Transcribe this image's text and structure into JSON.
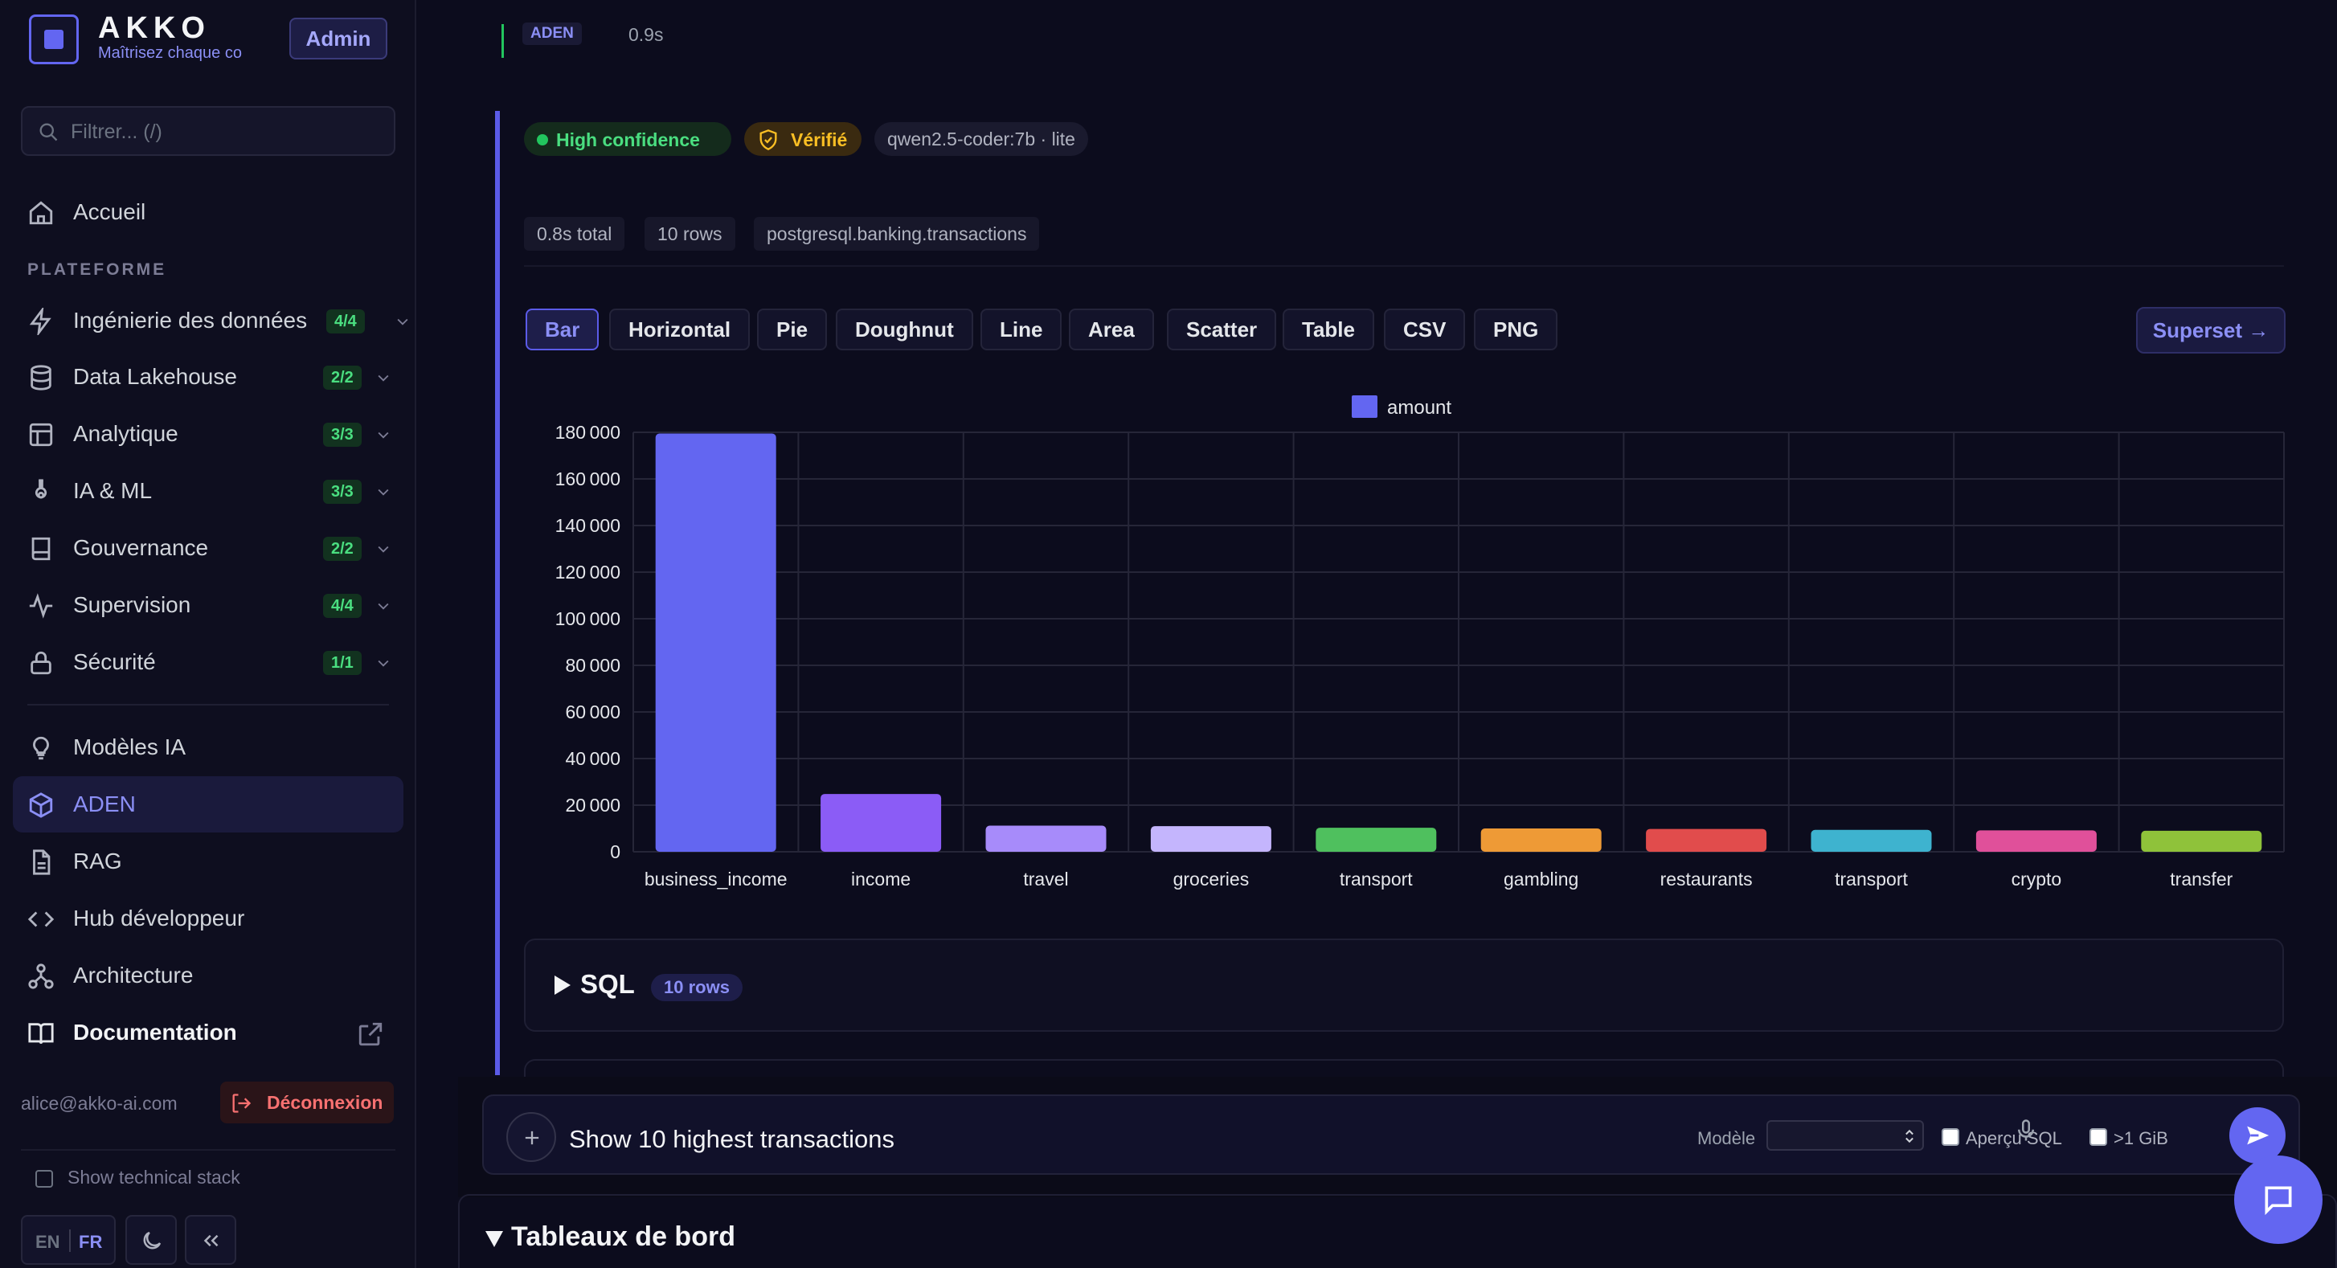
{
  "app": {
    "brand": "AKKO",
    "tagline": "Maîtrisez chaque co",
    "role_badge": "Admin"
  },
  "sidebar": {
    "search_placeholder": "Filtrer... (/)",
    "home": "Accueil",
    "section_title": "PLATEFORME",
    "groups": [
      {
        "label": "Ingénierie des données",
        "count": "4/4",
        "icon": "lightning-icon"
      },
      {
        "label": "Data Lakehouse",
        "count": "2/2",
        "icon": "database-icon"
      },
      {
        "label": "Analytique",
        "count": "3/3",
        "icon": "layout-icon"
      },
      {
        "label": "IA & ML",
        "count": "3/3",
        "icon": "flask-icon"
      },
      {
        "label": "Gouvernance",
        "count": "2/2",
        "icon": "book-icon"
      },
      {
        "label": "Supervision",
        "count": "4/4",
        "icon": "activity-icon"
      },
      {
        "label": "Sécurité",
        "count": "1/1",
        "icon": "lock-icon"
      }
    ],
    "links": [
      {
        "label": "Modèles IA",
        "icon": "bulb-icon"
      },
      {
        "label": "ADEN",
        "icon": "cube-icon",
        "active": true
      },
      {
        "label": "RAG",
        "icon": "file-icon"
      },
      {
        "label": "Hub développeur",
        "icon": "code-icon"
      },
      {
        "label": "Architecture",
        "icon": "network-icon"
      },
      {
        "label": "Documentation",
        "icon": "open-book-icon"
      }
    ],
    "user_email": "alice@akko-ai.com",
    "logout_label": "Déconnexion",
    "tech_stack_label": "Show technical stack",
    "lang_en": "EN",
    "lang_fr": "FR"
  },
  "result": {
    "prev_tag": "ADEN",
    "prev_time": "0.9s",
    "confidence": "High confidence",
    "verified": "Vérifié",
    "model": "qwen2.5-coder:7b · lite",
    "stats": [
      "0.8s total",
      "10 rows",
      "postgresql.banking.transactions"
    ],
    "chart_types": [
      "Bar",
      "Horizontal",
      "Pie",
      "Doughnut",
      "Line",
      "Area",
      "Scatter",
      "Table",
      "CSV",
      "PNG"
    ],
    "active_chart_type": "Bar",
    "superset_label": "Superset →",
    "sql_title": "SQL",
    "sql_rows_badge": "10 rows"
  },
  "chart_data": {
    "type": "bar",
    "categories": [
      "business_income",
      "income",
      "travel",
      "groceries",
      "transport",
      "gambling",
      "restaurants",
      "transport",
      "crypto",
      "transfer"
    ],
    "series": [
      {
        "name": "amount",
        "values": [
          179500,
          24800,
          11200,
          11000,
          10300,
          10000,
          9800,
          9400,
          9200,
          9000
        ]
      }
    ],
    "bar_colors": [
      "#6366f1",
      "#8b5cf6",
      "#a78bfa",
      "#c4b5fd",
      "#4fc05e",
      "#ee9a36",
      "#e14c4c",
      "#3eb3cf",
      "#e0509a",
      "#8fc23a"
    ],
    "yticks": [
      0,
      20000,
      40000,
      60000,
      80000,
      100000,
      120000,
      140000,
      160000,
      180000
    ],
    "ylim": [
      0,
      180000
    ],
    "legend_position": "top-center",
    "grid": true
  },
  "composer": {
    "input_value": "Show 10 highest transactions",
    "model_label": "Modèle",
    "sql_preview_label": "Aperçu SQL",
    "gib_label": ">1 GiB"
  },
  "dashboards": {
    "title": "Tableaux de bord"
  },
  "colors": {
    "accent": "#6366f1",
    "success": "#22c55e",
    "warning": "#fbbf24",
    "danger": "#f87171"
  }
}
